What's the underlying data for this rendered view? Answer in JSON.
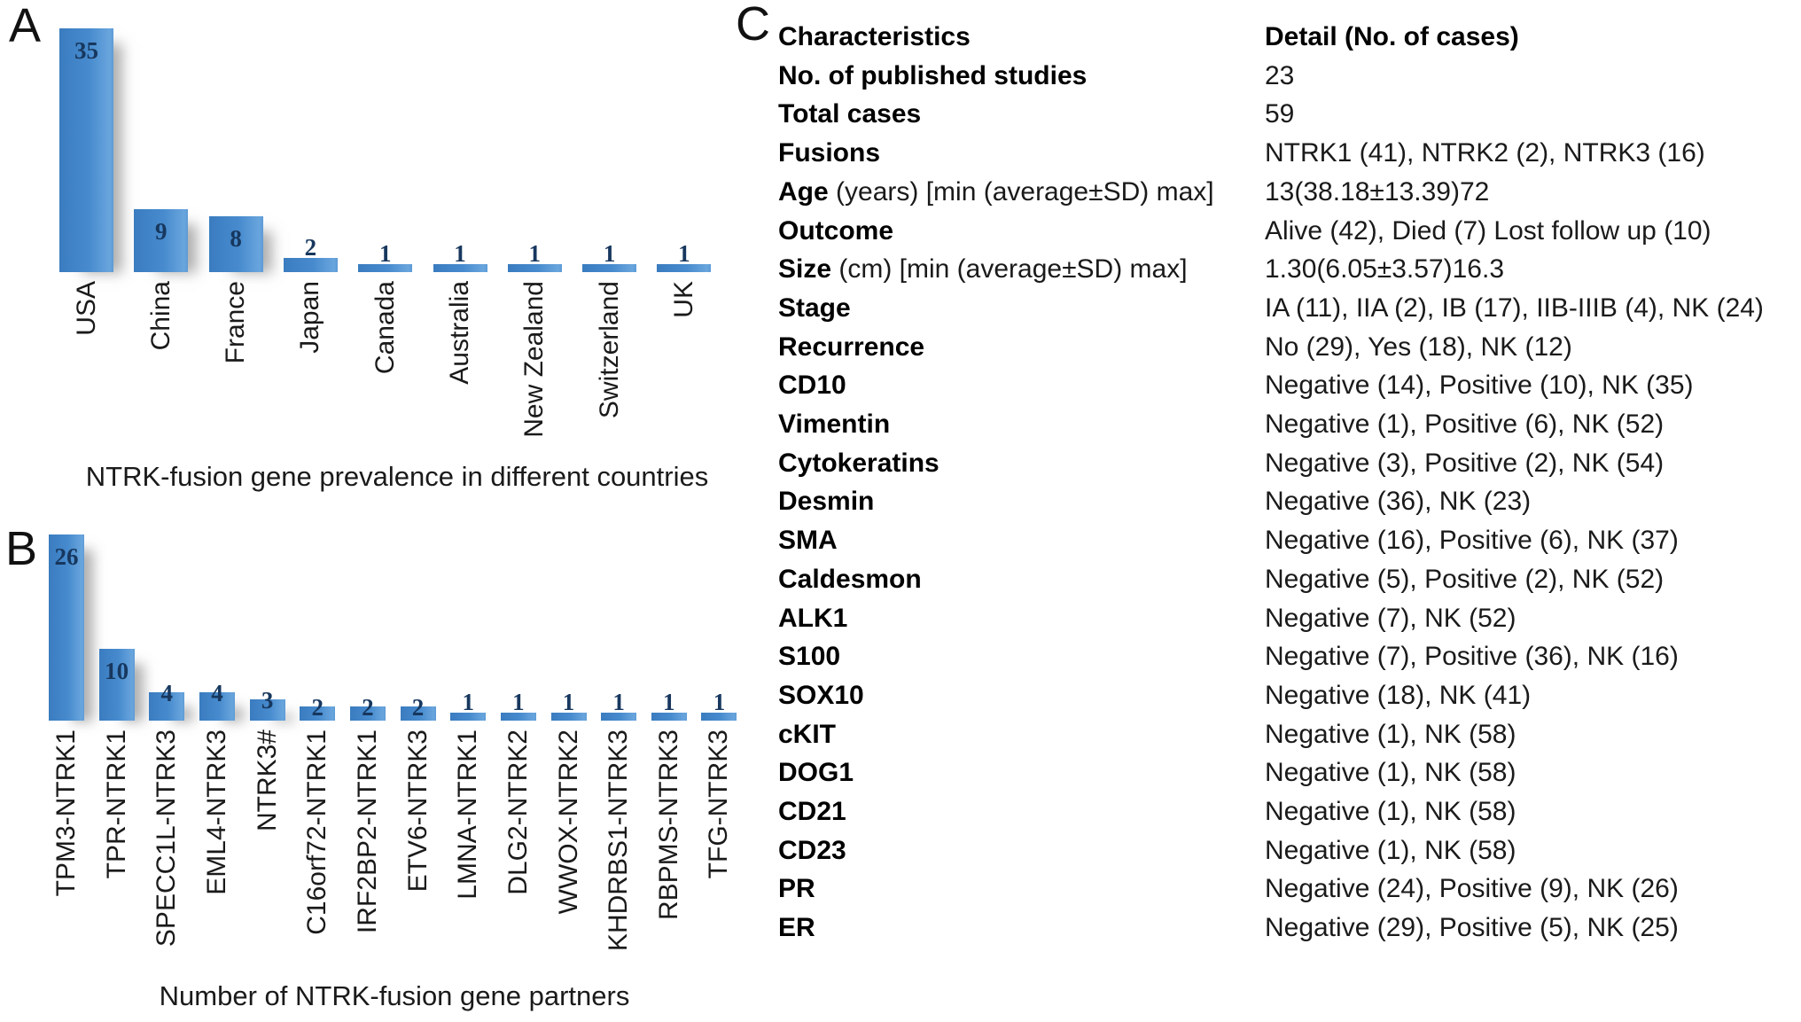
{
  "panels": {
    "a": {
      "letter": "A"
    },
    "b": {
      "letter": "B"
    },
    "c": {
      "letter": "C"
    }
  },
  "chart_data": [
    {
      "type": "bar",
      "panel": "A",
      "title": "NTRK-fusion gene prevalence in different countries",
      "categories": [
        "USA",
        "China",
        "France",
        "Japan",
        "Canada",
        "Australia",
        "New Zealand",
        "Switzerland",
        "UK"
      ],
      "values": [
        35,
        9,
        8,
        2,
        1,
        1,
        1,
        1,
        1
      ],
      "xlabel": "",
      "ylabel": "",
      "ylim": [
        0,
        35
      ],
      "grid": false,
      "legend": "none",
      "bar_color": "#4489cc",
      "value_label_color": "#17375e"
    },
    {
      "type": "bar",
      "panel": "B",
      "title": "Number of NTRK-fusion gene partners",
      "categories": [
        "TPM3-NTRK1",
        "TPR-NTRK1",
        "SPECC1L-NTRK3",
        "EML4-NTRK3",
        "NTRK3#",
        "C16orf72-NTRK1",
        "IRF2BP2-NTRK1",
        "ETV6-NTRK3",
        "LMNA-NTRK1",
        "DLG2-NTRK2",
        "WWOX-NTRK2",
        "KHDRBS1-NTRK3",
        "RBPMS-NTRK3",
        "TFG-NTRK3"
      ],
      "values": [
        26,
        10,
        4,
        4,
        3,
        2,
        2,
        2,
        1,
        1,
        1,
        1,
        1,
        1
      ],
      "xlabel": "",
      "ylabel": "",
      "ylim": [
        0,
        26
      ],
      "grid": false,
      "legend": "none",
      "bar_color": "#4489cc",
      "value_label_color": "#17375e"
    },
    {
      "type": "table",
      "panel": "C",
      "columns": [
        "Characteristics",
        "Detail (No. of cases)"
      ],
      "rows": [
        {
          "label": "No. of published studies",
          "rest": "",
          "value": "23"
        },
        {
          "label": "Total cases",
          "rest": "",
          "value": "59"
        },
        {
          "label": "Fusions",
          "rest": "",
          "value": "NTRK1 (41), NTRK2 (2), NTRK3 (16)"
        },
        {
          "label": "Age",
          "rest": " (years) [min (average±SD) max]",
          "value": "13(38.18±13.39)72"
        },
        {
          "label": "Outcome",
          "rest": "",
          "value": "Alive (42), Died (7) Lost follow up (10)"
        },
        {
          "label": "Size",
          "rest": " (cm) [min (average±SD) max]",
          "value": "1.30(6.05±3.57)16.3"
        },
        {
          "label": "Stage",
          "rest": "",
          "value": "IA (11), IIA (2), IB (17), IIB-IIIB (4), NK (24)"
        },
        {
          "label": "Recurrence",
          "rest": "",
          "value": "No (29), Yes (18), NK (12)"
        },
        {
          "label": "CD10",
          "rest": "",
          "value": "Negative (14), Positive (10), NK (35)"
        },
        {
          "label": "Vimentin",
          "rest": "",
          "value": "Negative (1), Positive (6), NK (52)"
        },
        {
          "label": "Cytokeratins",
          "rest": "",
          "value": "Negative (3), Positive (2), NK (54)"
        },
        {
          "label": "Desmin",
          "rest": "",
          "value": "Negative (36), NK (23)"
        },
        {
          "label": "SMA",
          "rest": "",
          "value": "Negative (16), Positive (6), NK (37)"
        },
        {
          "label": "Caldesmon",
          "rest": "",
          "value": "Negative (5), Positive (2), NK (52)"
        },
        {
          "label": "ALK1",
          "rest": "",
          "value": "Negative (7), NK (52)"
        },
        {
          "label": "S100",
          "rest": "",
          "value": "Negative (7), Positive (36), NK (16)"
        },
        {
          "label": "SOX10",
          "rest": "",
          "value": "Negative (18), NK (41)"
        },
        {
          "label": "cKIT",
          "rest": "",
          "value": "Negative (1), NK (58)"
        },
        {
          "label": "DOG1",
          "rest": "",
          "value": "Negative (1), NK (58)"
        },
        {
          "label": "CD21",
          "rest": "",
          "value": "Negative (1), NK (58)"
        },
        {
          "label": "CD23",
          "rest": "",
          "value": "Negative (1), NK (58)"
        },
        {
          "label": "PR",
          "rest": "",
          "value": "Negative (24), Positive (9), NK (26)"
        },
        {
          "label": "ER",
          "rest": "",
          "value": "Negative (29), Positive (5), NK (25)"
        }
      ]
    }
  ]
}
